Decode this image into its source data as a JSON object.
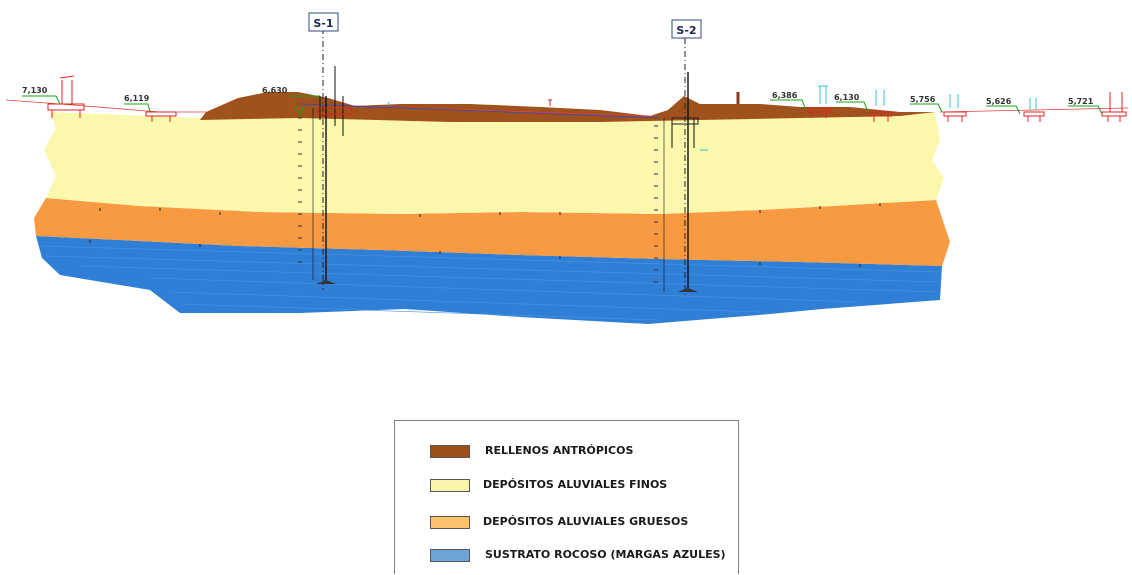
{
  "boreholes": [
    {
      "label": "S-1"
    },
    {
      "label": "S-2"
    }
  ],
  "elevations": [
    "7,130",
    "6,119",
    "6,630",
    "6,386",
    "6,130",
    "5,756",
    "5,626",
    "5,721"
  ],
  "legend": {
    "items": [
      {
        "label": "RELLENOS ANTRÓPICOS",
        "color": "#9c4f17"
      },
      {
        "label": "DEPÓSITOS ALUVIALES FINOS",
        "color": "#f8f5a8"
      },
      {
        "label": "DEPÓSITOS ALUVIALES GRUESOS",
        "color": "#fbc26b"
      },
      {
        "label": "SUSTRATO ROCOSO (MARGAS AZULES)",
        "color": "#6fa4d8"
      }
    ]
  },
  "colors": {
    "rellenos": "#a0521c",
    "finos": "#fbf7ad",
    "gruesos": "#f79a42",
    "sustrato": "#2f7fd6",
    "structures": "#e02020",
    "green_lines": "#1aa01a",
    "cyan_marks": "#31c4d8"
  }
}
